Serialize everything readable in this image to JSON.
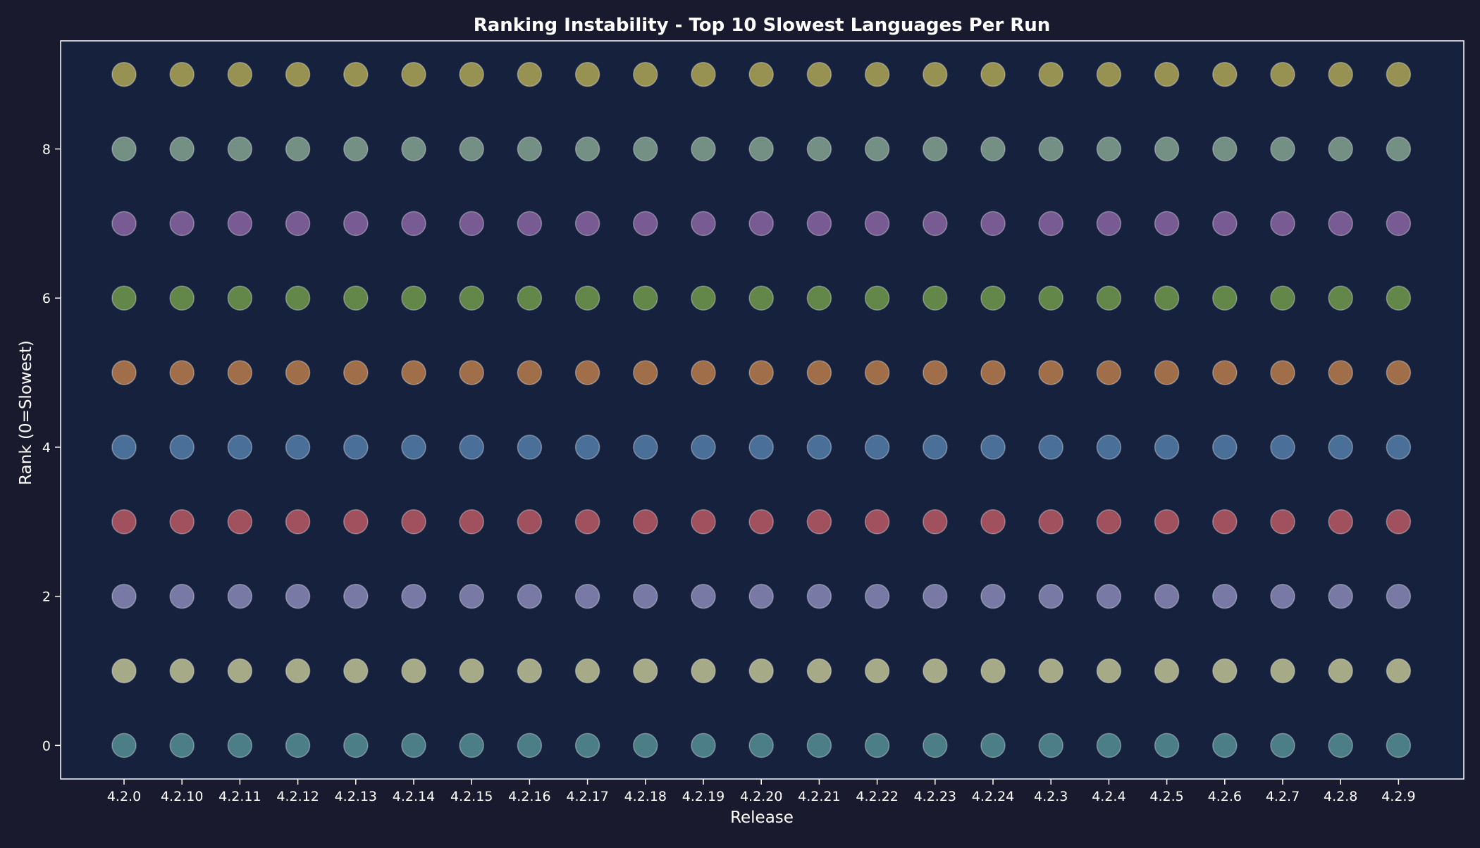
{
  "chart_data": {
    "type": "scatter",
    "title": "Ranking Instability - Top 10 Slowest Languages Per Run",
    "xlabel": "Release",
    "ylabel": "Rank (0=Slowest)",
    "categories": [
      "4.2.0",
      "4.2.10",
      "4.2.11",
      "4.2.12",
      "4.2.13",
      "4.2.14",
      "4.2.15",
      "4.2.16",
      "4.2.17",
      "4.2.18",
      "4.2.19",
      "4.2.20",
      "4.2.21",
      "4.2.22",
      "4.2.23",
      "4.2.24",
      "4.2.3",
      "4.2.4",
      "4.2.5",
      "4.2.6",
      "4.2.7",
      "4.2.8",
      "4.2.9"
    ],
    "y_ticks": [
      0,
      2,
      4,
      6,
      8
    ],
    "ylim": [
      -0.45,
      9.45
    ],
    "grid": false,
    "series": [
      {
        "rank": 0,
        "color": "#5f9ea0"
      },
      {
        "rank": 1,
        "color": "#d8d8a0"
      },
      {
        "rank": 2,
        "color": "#9a98c8"
      },
      {
        "rank": 3,
        "color": "#d0616a"
      },
      {
        "rank": 4,
        "color": "#5c8ab8"
      },
      {
        "rank": 5,
        "color": "#cf8a4e"
      },
      {
        "rank": 6,
        "color": "#7da84e"
      },
      {
        "rank": 7,
        "color": "#9a6fb0"
      },
      {
        "rank": 8,
        "color": "#94b49c"
      },
      {
        "rank": 9,
        "color": "#c4b85a"
      }
    ],
    "colors": {
      "background": "#1a1a2e",
      "plot_background": "#16213e",
      "text": "#ffffff"
    }
  }
}
